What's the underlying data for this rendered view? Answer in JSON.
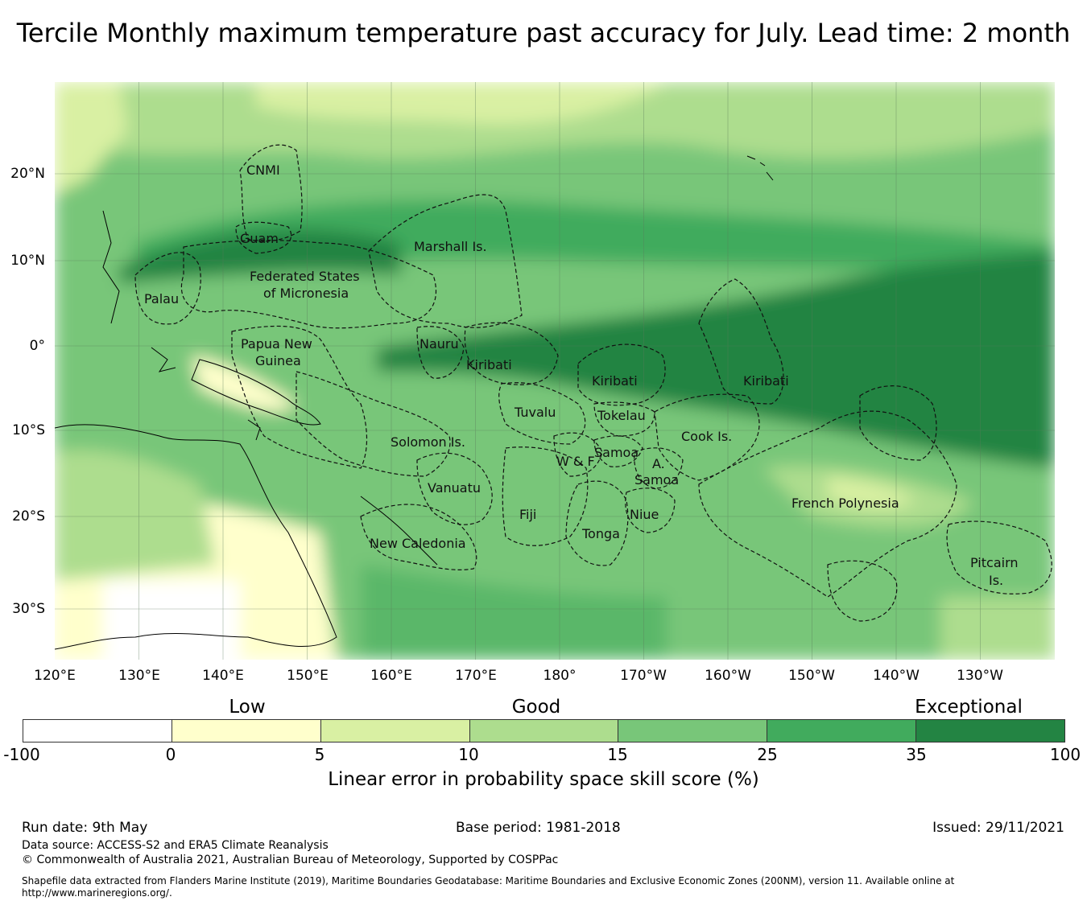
{
  "title": "Tercile Monthly maximum temperature past accuracy for July. Lead time: 2 month",
  "map": {
    "lon_labels": [
      "120°E",
      "130°E",
      "140°E",
      "150°E",
      "160°E",
      "170°E",
      "180°",
      "170°W",
      "160°W",
      "150°W",
      "140°W",
      "130°W"
    ],
    "lat_labels": [
      "20°N",
      "10°N",
      "0°",
      "10°S",
      "20°S",
      "30°S"
    ],
    "regions": {
      "cnmi": "CNMI",
      "guam": "Guam",
      "marshall": "Marshall Is.",
      "fsm_1": "Federated States",
      "fsm_2": "of Micronesia",
      "palau": "Palau",
      "png_1": "Papua New",
      "png_2": "Guinea",
      "nauru": "Nauru",
      "kiribati_west": "Kiribati",
      "kiribati_central": "Kiribati",
      "kiribati_east": "Kiribati",
      "tuvalu": "Tuvalu",
      "tokelau": "Tokelau",
      "solomon": "Solomon Is.",
      "samoa": "Samoa",
      "wf": "W & F",
      "asamoa_1": "A.",
      "asamoa_2": "Samoa",
      "cook": "Cook Is.",
      "vanuatu": "Vanuatu",
      "fiji": "Fiji",
      "niue": "Niue",
      "tonga": "Tonga",
      "french_polynesia": "French Polynesia",
      "new_caledonia": "New Caledonia",
      "pitcairn_1": "Pitcairn",
      "pitcairn_2": "Is."
    }
  },
  "colorbar": {
    "categories": [
      "Low",
      "Good",
      "Exceptional"
    ],
    "ticks": [
      "-100",
      "0",
      "5",
      "10",
      "15",
      "25",
      "35",
      "100"
    ],
    "colors": [
      "#ffffff",
      "#ffffcc",
      "#d9f0a3",
      "#addd8e",
      "#78c679",
      "#41ab5d",
      "#238443"
    ],
    "label": "Linear error in probability space skill score (%)"
  },
  "footer": {
    "run_date": "Run date: 9th May",
    "base_period": "Base period: 1981-2018",
    "issued": "Issued: 29/11/2021",
    "data_source": "Data source: ACCESS-S2 and ERA5 Climate Reanalysis",
    "copyright": "© Commonwealth of Australia 2021, Australian Bureau of Meteorology, Supported by COSPPac",
    "shapefile_1": "Shapefile data extracted from Flanders Marine Institute (2019), Maritime Boundaries Geodatabase: Maritime Boundaries and Exclusive Economic Zones (200NM), version 11. Available online at",
    "shapefile_2": "http://www.marineregions.org/."
  }
}
